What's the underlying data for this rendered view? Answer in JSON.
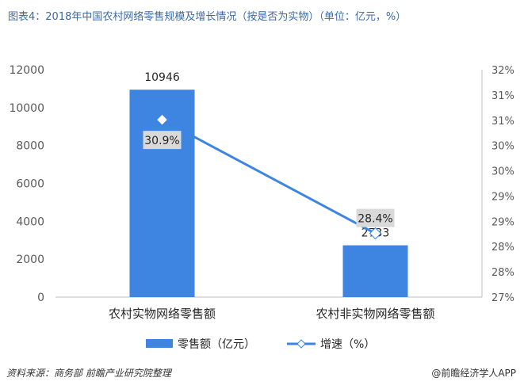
{
  "title": "图表4：2018年中国农村网络零售规模及增长情况（按是否为实物）（单位：亿元，%）",
  "footer": {
    "source": "资料来源：商务部 前瞻产业研究院整理",
    "credit": "@前瞻经济学人APP"
  },
  "colors": {
    "bar": "#3d85e0",
    "line": "#3d85e0",
    "axis": "#bfbfbf",
    "label_box": "#d9d9d9"
  },
  "chart_data": {
    "type": "bar",
    "title": "",
    "categories": [
      "农村实物网络零售额",
      "农村非实物网络零售额"
    ],
    "series": [
      {
        "name": "零售额（亿元）",
        "type": "bar",
        "axis": "left",
        "values": [
          10946,
          2733
        ],
        "labels": [
          "10946",
          "2733"
        ]
      },
      {
        "name": "增速（%）",
        "type": "line",
        "axis": "right",
        "values": [
          30.9,
          28.4
        ],
        "labels": [
          "30.9%",
          "28.4%"
        ]
      }
    ],
    "y_left": {
      "ylim": [
        0,
        12000
      ],
      "ticks": [
        "0",
        "2000",
        "4000",
        "6000",
        "8000",
        "10000",
        "12000"
      ]
    },
    "y_right": {
      "ylim": [
        27,
        32
      ],
      "ticks": [
        "27%",
        "28%",
        "28%",
        "29%",
        "29%",
        "30%",
        "30%",
        "31%",
        "31%",
        "32%"
      ]
    },
    "grid": false,
    "legend": "bottom"
  }
}
